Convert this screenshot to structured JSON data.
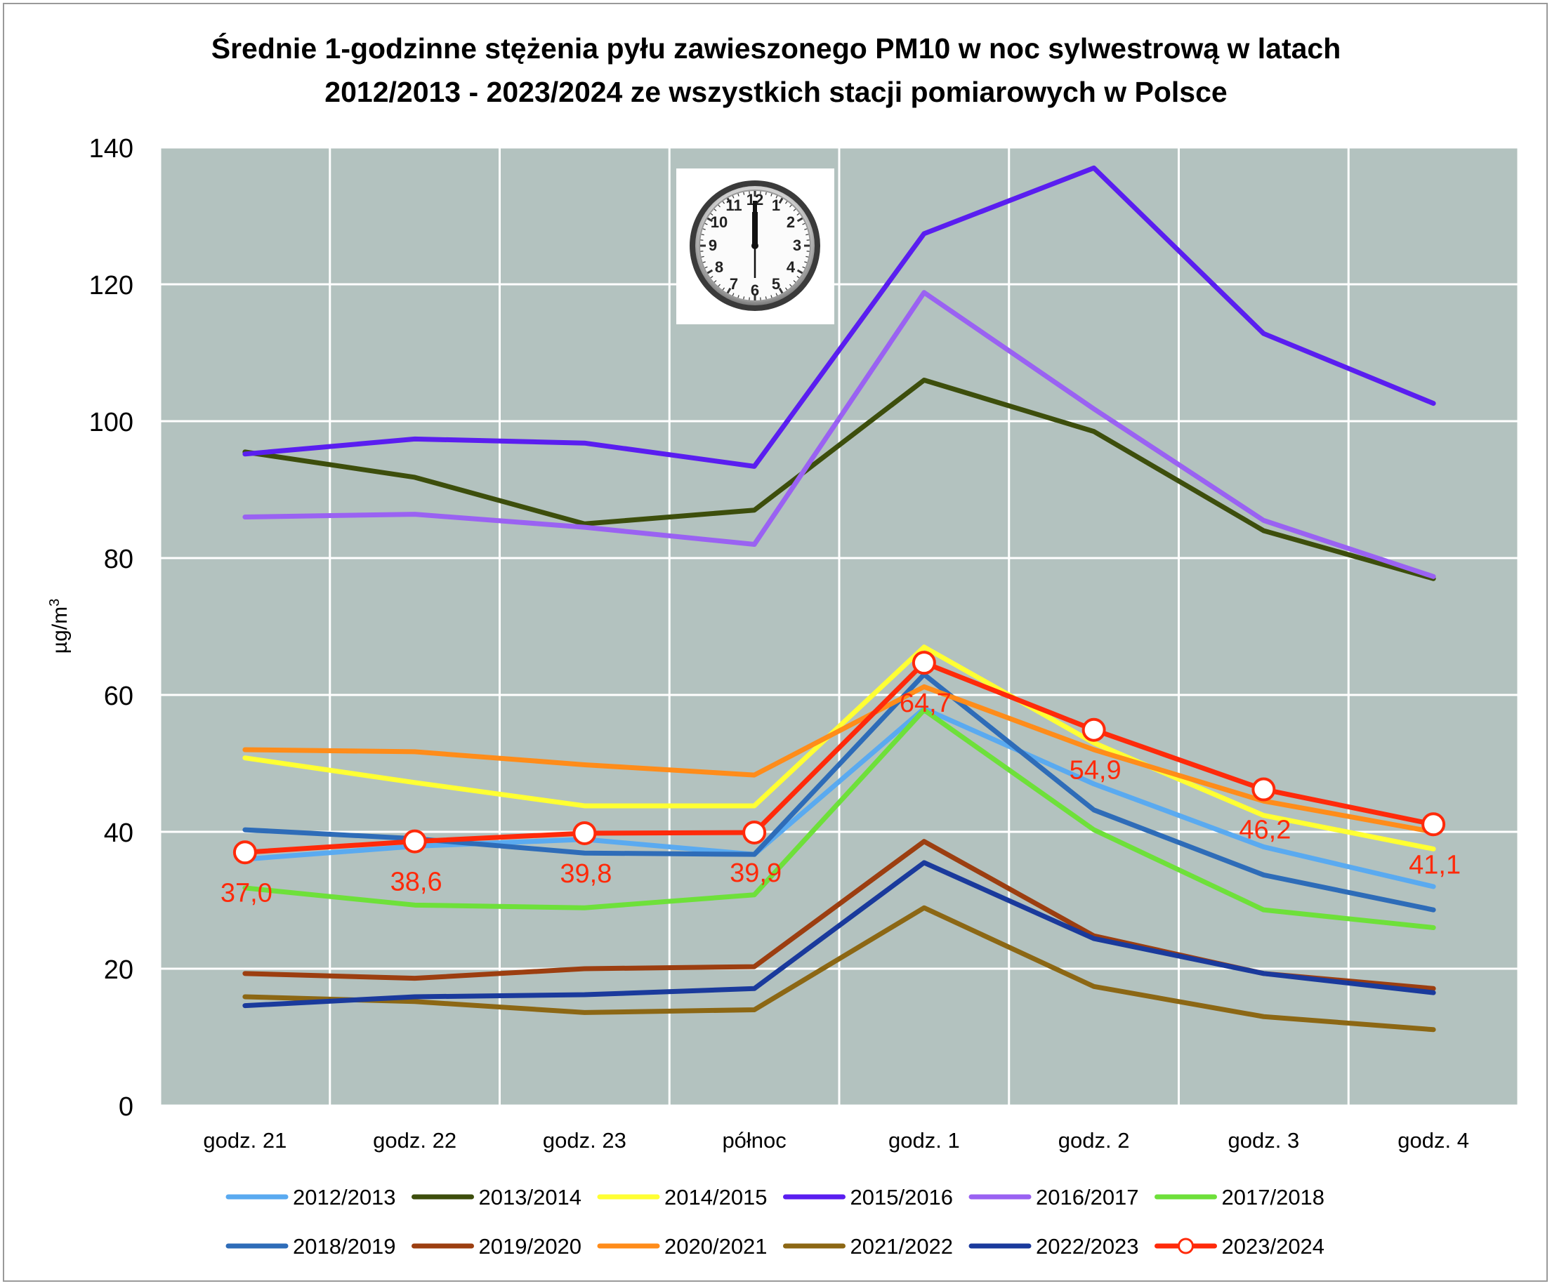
{
  "title_line1": "Średnie 1-godzinne stężenia pyłu zawieszonego PM10 w noc sylwestrową w latach",
  "title_line2": "2012/2013 - 2023/2024 ze wszystkich stacji pomiarowych w Polsce",
  "clock_icon": "wall-clock-icon",
  "chart_data": {
    "type": "line",
    "title": "Średnie 1-godzinne stężenia pyłu zawieszonego PM10 w noc sylwestrową w latach 2012/2013 - 2023/2024 ze wszystkich stacji pomiarowych w Polsce",
    "ylabel": "µg/m3",
    "ylim": [
      0,
      140
    ],
    "yticks": [
      "0",
      "20",
      "40",
      "60",
      "80",
      "100",
      "120",
      "140"
    ],
    "categories": [
      "godz. 21",
      "godz. 22",
      "godz. 23",
      "północ",
      "godz. 1",
      "godz. 2",
      "godz. 3",
      "godz. 4"
    ],
    "grid": true,
    "legend_position": "bottom",
    "plot_background": "#b3c2bf",
    "series": [
      {
        "name": "2012/2013",
        "color": "#5aaaf0",
        "values": [
          36.0,
          37.9,
          38.9,
          36.7,
          58.0,
          47.0,
          37.8,
          32.0
        ]
      },
      {
        "name": "2013/2014",
        "color": "#3d4e0c",
        "values": [
          95.5,
          91.8,
          85.0,
          87.0,
          106.0,
          98.5,
          84.0,
          77.0
        ]
      },
      {
        "name": "2014/2015",
        "color": "#ffff33",
        "values": [
          50.8,
          47.2,
          43.8,
          43.8,
          67.0,
          53.0,
          42.4,
          37.5
        ]
      },
      {
        "name": "2015/2016",
        "color": "#5a1ef0",
        "values": [
          95.2,
          97.4,
          96.8,
          93.4,
          127.4,
          137.0,
          112.8,
          102.6
        ]
      },
      {
        "name": "2016/2017",
        "color": "#9a62f2",
        "values": [
          86.0,
          86.4,
          84.5,
          82.0,
          118.8,
          101.8,
          85.5,
          77.3
        ]
      },
      {
        "name": "2017/2018",
        "color": "#6ee03a",
        "values": [
          31.8,
          29.3,
          28.9,
          30.8,
          57.8,
          40.3,
          28.6,
          26.0
        ]
      },
      {
        "name": "2018/2019",
        "color": "#2e6cb8",
        "values": [
          40.3,
          39.0,
          36.9,
          36.7,
          63.0,
          43.2,
          33.7,
          28.6
        ]
      },
      {
        "name": "2019/2020",
        "color": "#9c3e10",
        "values": [
          19.3,
          18.6,
          20.0,
          20.3,
          38.6,
          24.8,
          19.3,
          17.1
        ]
      },
      {
        "name": "2020/2021",
        "color": "#ff8c1a",
        "values": [
          52.0,
          51.7,
          49.8,
          48.3,
          61.2,
          52.0,
          44.5,
          40.0
        ]
      },
      {
        "name": "2021/2022",
        "color": "#8c6714",
        "values": [
          15.9,
          15.2,
          13.6,
          14.0,
          28.9,
          17.4,
          13.0,
          11.1
        ]
      },
      {
        "name": "2022/2023",
        "color": "#1a3a9c",
        "values": [
          14.6,
          15.9,
          16.2,
          17.1,
          35.5,
          24.4,
          19.3,
          16.5
        ]
      },
      {
        "name": "2023/2024",
        "color": "#ff2a0a",
        "values": [
          37.0,
          38.6,
          39.8,
          39.9,
          64.7,
          54.9,
          46.2,
          41.1
        ],
        "markers": true,
        "data_labels": [
          "37,0",
          "38,6",
          "39,8",
          "39,9",
          "64,7",
          "54,9",
          "46,2",
          "41,1"
        ]
      }
    ]
  }
}
